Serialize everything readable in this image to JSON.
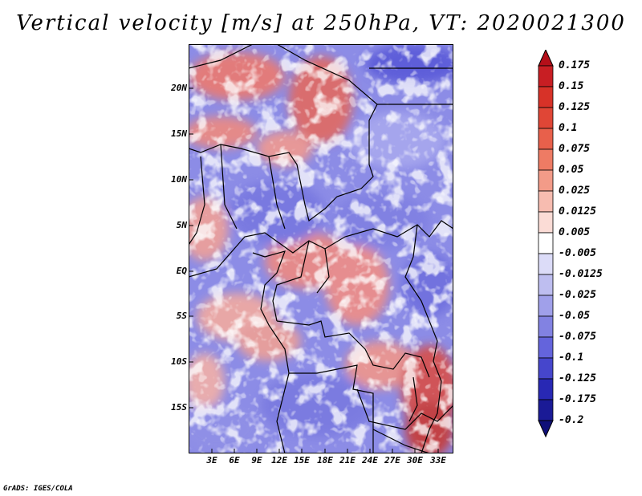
{
  "title": "Vertical velocity [m/s] at 250hPa, VT: 2020021300",
  "credit": "GrADS: IGES/COLA",
  "map": {
    "lat_labels": [
      "20N",
      "15N",
      "10N",
      "5N",
      "EQ",
      "5S",
      "10S",
      "15S"
    ],
    "lon_labels": [
      "3E",
      "6E",
      "9E",
      "12E",
      "15E",
      "18E",
      "21E",
      "24E",
      "27E",
      "30E",
      "33E"
    ]
  },
  "colorbar": {
    "levels": [
      "0.175",
      "0.15",
      "0.125",
      "0.1",
      "0.075",
      "0.05",
      "0.025",
      "0.0125",
      "0.005",
      "-0.005",
      "-0.0125",
      "-0.025",
      "-0.05",
      "-0.075",
      "-0.1",
      "-0.125",
      "-0.175",
      "-0.2"
    ],
    "colors": [
      "#b40f19",
      "#c81e23",
      "#d73228",
      "#e04636",
      "#e8604b",
      "#ee7b64",
      "#f39b88",
      "#f7bcb0",
      "#fbdcd6",
      "#ffffff",
      "#dcdcf8",
      "#bebef0",
      "#a0a0ea",
      "#8282e2",
      "#6464dc",
      "#4646cc",
      "#2828b4",
      "#1a1a96",
      "#0f0f78"
    ]
  },
  "chart_data": {
    "type": "heatmap",
    "title": "Vertical velocity [m/s] at 250hPa, VT: 2020021300",
    "variable": "Vertical velocity",
    "units": "m/s",
    "level": "250hPa",
    "valid_time": "2020021300",
    "x_ticks": [
      "3E",
      "6E",
      "9E",
      "12E",
      "15E",
      "18E",
      "21E",
      "24E",
      "27E",
      "30E",
      "33E"
    ],
    "y_ticks": [
      "20N",
      "15N",
      "10N",
      "5N",
      "EQ",
      "5S",
      "10S",
      "15S"
    ],
    "color_levels": [
      -0.2,
      -0.175,
      -0.125,
      -0.1,
      -0.075,
      -0.05,
      -0.025,
      -0.0125,
      -0.005,
      0.005,
      0.0125,
      0.025,
      0.05,
      0.075,
      0.1,
      0.125,
      0.15,
      0.175
    ]
  }
}
